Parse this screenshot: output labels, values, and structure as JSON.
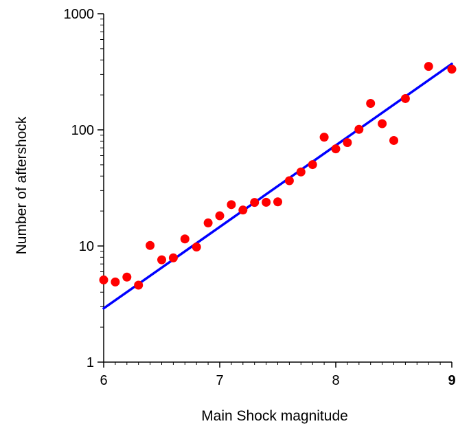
{
  "chart_data": {
    "type": "scatter",
    "title": "",
    "xlabel": "Main Shock magnitude",
    "ylabel": "Number of aftershock",
    "x_scale": "linear",
    "y_scale": "log",
    "xlim": [
      6,
      9
    ],
    "ylim": [
      1,
      1000
    ],
    "x_ticks": [
      "6",
      "7",
      "8",
      "9"
    ],
    "y_ticks": [
      "1",
      "10",
      "100",
      "1000"
    ],
    "grid": false,
    "legend": "none",
    "colors": {
      "points": "#ff0000",
      "fit_line": "#0000ff",
      "axes": "#000000"
    },
    "series": [
      {
        "type": "scatter",
        "x": [
          6.0,
          6.1,
          6.2,
          6.3,
          6.4,
          6.5,
          6.6,
          6.7,
          6.8,
          6.9,
          7.0,
          7.1,
          7.2,
          7.3,
          7.4,
          7.5,
          7.6,
          7.7,
          7.8,
          7.9,
          8.0,
          8.1,
          8.2,
          8.3,
          8.4,
          8.5,
          8.6,
          8.8,
          9.0
        ],
        "y": [
          5.1,
          4.9,
          5.4,
          4.6,
          10.1,
          7.6,
          7.9,
          11.5,
          9.8,
          15.8,
          18.2,
          22.7,
          20.4,
          23.7,
          23.8,
          24.0,
          36.5,
          43.4,
          50.2,
          86.5,
          68.6,
          77.7,
          101,
          169,
          113,
          81,
          186,
          352,
          333
        ]
      },
      {
        "type": "line",
        "x": [
          6.0,
          9.0
        ],
        "y": [
          2.9,
          370
        ]
      }
    ]
  }
}
